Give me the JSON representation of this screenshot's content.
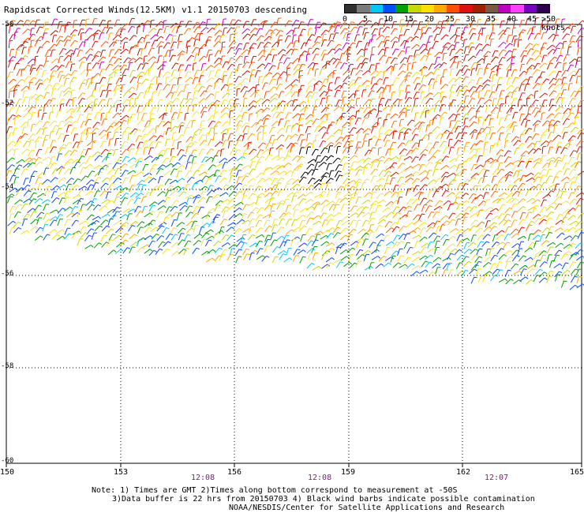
{
  "title": "Rapidscat Corrected Winds(12.5KM) v1.1 20150703 descending",
  "colorbar": {
    "unit_label": ">50 knots",
    "ticks": [
      "0",
      "5",
      "10",
      "15",
      "20",
      "25",
      "30",
      "35",
      "40",
      "45"
    ],
    "colors": [
      "#303030",
      "#7a7a7a",
      "#00c8ff",
      "#0050ff",
      "#00a000",
      "#c8d800",
      "#ffe000",
      "#ffaa00",
      "#ff5000",
      "#e01010",
      "#a02000",
      "#7a5a40",
      "#c000c0",
      "#ff40ff",
      "#7a00c0",
      "#300050"
    ]
  },
  "map": {
    "lon_labels": [
      "150",
      "153",
      "156",
      "159",
      "162",
      "165"
    ],
    "lat_labels": [
      "-50",
      "-52",
      "-54",
      "-56",
      "-58",
      "-60"
    ],
    "time_labels": [
      "12:08",
      "12:08",
      "12:07"
    ]
  },
  "notes": [
    "Note: 1) Times are GMT 2)Times along bottom correspond to measurement at -50S",
    "3)Data buffer is 22 hrs from 20150703 4) Black wind barbs indicate possible contamination",
    "NOAA/NESDIS/Center for Satellite Applications and Research"
  ]
}
